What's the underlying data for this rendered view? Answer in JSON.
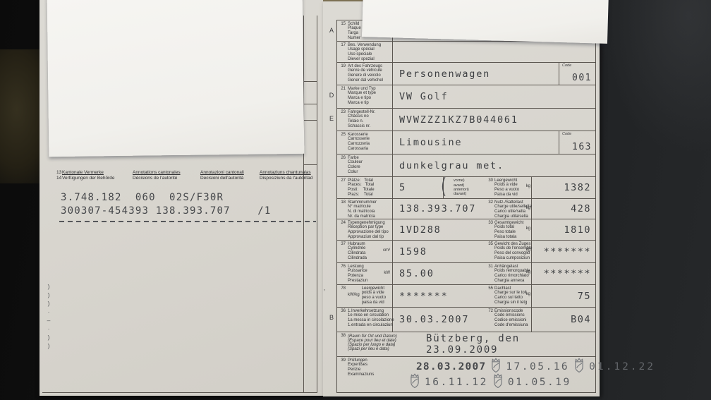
{
  "scene": {
    "left_margin_marks": [
      ")",
      ")",
      ")",
      "·",
      "–",
      "·",
      ")",
      ")"
    ],
    "right_margin_mark": "ʼ"
  },
  "left_doc": {
    "header_cols": {
      "c1": {
        "num1": "13",
        "line1": "Kantonale Vermerke",
        "num2": "14",
        "line2": "Verfügungen der Behörde"
      },
      "c2": {
        "line1": "Annotations cantonales",
        "line2": "Décisions de l'autorité"
      },
      "c3": {
        "line1": "Annotazioni cantonali",
        "line2": "Decisioni dell'autorità"
      },
      "c4": {
        "line1": "Annotaziuns chantunalas",
        "line2": "Disposiziuns da l'autoritad"
      }
    },
    "typed_line1": "3.748.182  060  02S/F30R",
    "typed_line2": "300307-454393 138.393.707    /1"
  },
  "right_doc": {
    "rows": [
      {
        "letter": "A",
        "num": "15",
        "labels": [
          "Schild",
          "Plaque",
          "Targa",
          "Numer"
        ],
        "value": ""
      },
      {
        "num": "17",
        "labels": [
          "Bes. Verwendung",
          "Usage spécial",
          "Uso speciale",
          "Diever spezial"
        ],
        "value": ""
      },
      {
        "num": "19",
        "labels": [
          "Art des Fahrzeugs",
          "Genre de véhicule",
          "Genere di veicolo",
          "Gener dal vehichel"
        ],
        "value": "Personenwagen",
        "code_label": "Code",
        "code": "001"
      },
      {
        "letter": "D",
        "num": "21",
        "labels": [
          "Marke und Typ",
          "Marque et type",
          "Marca e tipo",
          "Marca e tip"
        ],
        "value": "VW Golf"
      },
      {
        "letter": "E",
        "num": "23",
        "labels": [
          "Fahrgestell-Nr.",
          "Châssis no",
          "Telaio n.",
          "Schassis nr."
        ],
        "value": "WVWZZZ1KZ7B044061"
      },
      {
        "num": "25",
        "labels": [
          "Karosserie",
          "Carrosserie",
          "Carrozzeria",
          "Carossaria"
        ],
        "value": "Limousine",
        "code_label": "Code",
        "code": "163"
      },
      {
        "num": "26",
        "labels": [
          "Farbe",
          "Couleur",
          "Colore",
          "Colur"
        ],
        "value": "dunkelgrau met."
      },
      {
        "num": "27",
        "labels": [
          "Plätze:   Total",
          "Places:   Total",
          "Posti:    Totale",
          "Plazs:    Total"
        ],
        "value": "5",
        "brace": "(",
        "brace_lines": [
          "vorne)",
          "avant)",
          "anteriori)",
          "davant)"
        ],
        "right": {
          "num": "30",
          "labels": [
            "Leergewicht",
            "Poids à vide",
            "Peso a vuoto",
            "Paisa da vid"
          ],
          "unit": "kg",
          "value": "1382"
        }
      },
      {
        "num": "18",
        "labels": [
          "Stammnummer",
          "N° matricule",
          "N. di matricola",
          "Nr. da matricla"
        ],
        "value": "138.393.707",
        "right": {
          "num": "32",
          "labels": [
            "Nutz-/Sattellast",
            "Charge utile/sellette",
            "Carico utile/sella",
            "Chargia utila/sella"
          ],
          "unit": "kg",
          "value": "428"
        }
      },
      {
        "num": "24",
        "labels": [
          "Typengenehmigung",
          "Réception par type",
          "Approvazione del tipo",
          "Approvaziun dal tip"
        ],
        "value": "1VD288",
        "right": {
          "num": "33",
          "labels": [
            "Gesamtgewicht",
            "Poids total",
            "Peso totale",
            "Paisa totala"
          ],
          "unit": "kg",
          "value": "1810"
        }
      },
      {
        "num": "37",
        "labels": [
          "Hubraum",
          "Cylindrée",
          "Cilindrata",
          "Cilindrada"
        ],
        "unit": "cm³",
        "value": "1598",
        "right": {
          "num": "35",
          "labels": [
            "Gewicht des Zuges",
            "Poids de l'ensemble",
            "Peso del convoglio",
            "Paisa cumposiziun"
          ],
          "unit": "kg",
          "value": "*******"
        }
      },
      {
        "num": "76",
        "labels": [
          "Leistung",
          "Puissance",
          "Potenza",
          "Prestaziun"
        ],
        "unit": "kW",
        "value": "85.00",
        "right": {
          "num": "31",
          "labels": [
            "Anhängelast",
            "Poids remorquable",
            "Carico rimorchiato",
            "Chargia annexa"
          ],
          "unit": "kg",
          "value": "*******"
        }
      },
      {
        "num": "78",
        "prefix": "kW/kg",
        "labels": [
          "Leergewicht",
          "poids à vide",
          "peso a vuoto",
          "paisa da vid"
        ],
        "value": "*******",
        "right": {
          "num": "55",
          "labels": [
            "Dachlast",
            "Charge sur le toit",
            "Carico sul tetto",
            "Chargia sin il tetg"
          ],
          "unit": "kg",
          "value": "75"
        }
      },
      {
        "letter": "B",
        "num": "36",
        "labels": [
          "1.Inverkehrsetzung",
          "1e mise en circulation",
          "1a messa in circolazione",
          "1.entrada en circulaziun"
        ],
        "value": "30.03.2007",
        "right": {
          "num": "72",
          "labels": [
            "Emissionscode",
            "Code émissions",
            "Codice emissioni",
            "Code d'emissiuna"
          ],
          "value": "B04"
        }
      },
      {
        "num": "38",
        "labels": [
          "(Raum für Ort und Datum)",
          "(Espace pour lieu et date)",
          "(Spazio per luogo e data)",
          "(Spazi per lieu e data)"
        ],
        "value": "Bützberg, den 23.09.2009"
      },
      {
        "num": "39",
        "labels": [
          "Prüfungen",
          "Expertises",
          "Perizie",
          "Examinaziuns"
        ],
        "stamps": {
          "d1": "28.03.2007",
          "d2": "17.05.16",
          "d3": "01.12.22",
          "d4": "16.11.12",
          "d5": "01.05.19"
        }
      }
    ]
  }
}
